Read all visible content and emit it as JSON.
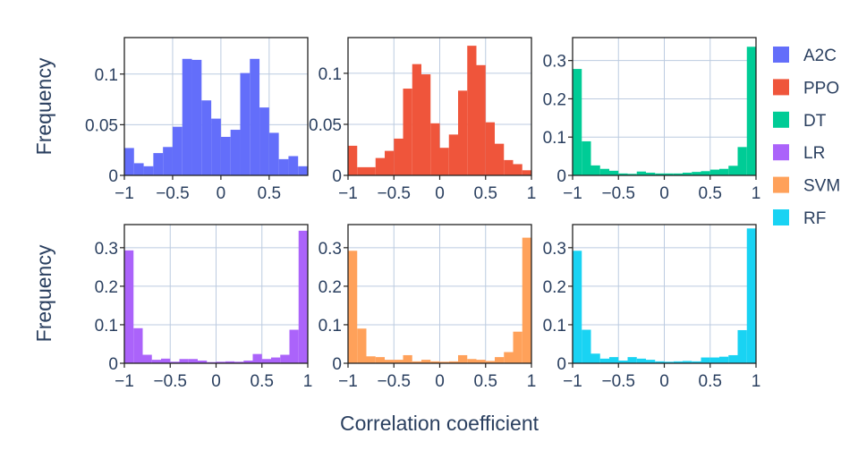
{
  "chart_data": {
    "type": "bar",
    "x_label": "Correlation coefficient",
    "y_label": "Frequency",
    "bin_width": 0.1,
    "bin_centers": [
      -0.95,
      -0.85,
      -0.75,
      -0.65,
      -0.55,
      -0.45,
      -0.35,
      -0.25,
      -0.15,
      -0.05,
      0.05,
      0.15,
      0.25,
      0.35,
      0.45,
      0.55,
      0.65,
      0.75,
      0.85,
      0.95
    ],
    "x_range": [
      -1,
      1
    ],
    "x_ticks": [
      -1,
      -0.5,
      0,
      0.5,
      1
    ],
    "x_tick_labels": [
      "−1",
      "−0.5",
      "0",
      "0.5",
      "1"
    ],
    "grid": true,
    "legend_placement": "right",
    "panels": [
      {
        "series": "A2C",
        "color": "#636efa",
        "row": 1,
        "col": 1,
        "x_range": [
          -1,
          0.9
        ],
        "x_ticks": [
          -1,
          -0.5,
          0,
          0.5
        ],
        "x_tick_labels": [
          "−1",
          "−0.5",
          "0",
          "0.5"
        ],
        "y_range": [
          0,
          0.136
        ],
        "y_ticks": [
          0,
          0.05,
          0.1
        ],
        "y_tick_labels": [
          "0",
          "0.05",
          "0.1"
        ],
        "values": [
          0.027,
          0.012,
          0.009,
          0.022,
          0.028,
          0.048,
          0.115,
          0.114,
          0.074,
          0.056,
          0.038,
          0.045,
          0.101,
          0.115,
          0.067,
          0.042,
          0.016,
          0.019,
          0.009
        ]
      },
      {
        "series": "PPO",
        "color": "#ef553b",
        "row": 1,
        "col": 2,
        "y_range": [
          0,
          0.135
        ],
        "y_ticks": [
          0,
          0.05,
          0.1
        ],
        "y_tick_labels": [
          "0",
          "0.05",
          "0.1"
        ],
        "values": [
          0.029,
          0.008,
          0.008,
          0.017,
          0.024,
          0.036,
          0.085,
          0.109,
          0.099,
          0.051,
          0.027,
          0.04,
          0.083,
          0.127,
          0.108,
          0.052,
          0.031,
          0.015,
          0.011,
          0.005
        ]
      },
      {
        "series": "DT",
        "color": "#00cc96",
        "row": 1,
        "col": 3,
        "y_range": [
          0,
          0.36
        ],
        "y_ticks": [
          0,
          0.1,
          0.2,
          0.3
        ],
        "y_tick_labels": [
          "0",
          "0.1",
          "0.2",
          "0.3"
        ],
        "values": [
          0.278,
          0.089,
          0.026,
          0.017,
          0.012,
          0.005,
          0.004,
          0.01,
          0.007,
          0.005,
          0.005,
          0.005,
          0.007,
          0.009,
          0.011,
          0.015,
          0.017,
          0.025,
          0.074,
          0.336
        ]
      },
      {
        "series": "LR",
        "color": "#ab63fa",
        "row": 2,
        "col": 1,
        "y_range": [
          0,
          0.36
        ],
        "y_ticks": [
          0,
          0.1,
          0.2,
          0.3
        ],
        "y_tick_labels": [
          "0",
          "0.1",
          "0.2",
          "0.3"
        ],
        "values": [
          0.293,
          0.091,
          0.022,
          0.009,
          0.012,
          0.004,
          0.011,
          0.011,
          0.007,
          0.003,
          0.004,
          0.005,
          0.004,
          0.007,
          0.024,
          0.011,
          0.015,
          0.022,
          0.087,
          0.344
        ]
      },
      {
        "series": "SVM",
        "color": "#ffa15a",
        "row": 2,
        "col": 2,
        "y_range": [
          0,
          0.36
        ],
        "y_ticks": [
          0,
          0.1,
          0.2,
          0.3
        ],
        "y_tick_labels": [
          "0",
          "0.1",
          "0.2",
          "0.3"
        ],
        "values": [
          0.292,
          0.09,
          0.018,
          0.016,
          0.009,
          0.009,
          0.021,
          0.005,
          0.009,
          0.005,
          0.004,
          0.005,
          0.021,
          0.011,
          0.009,
          0.006,
          0.016,
          0.029,
          0.082,
          0.326
        ]
      },
      {
        "series": "RF",
        "color": "#19d3f3",
        "row": 2,
        "col": 3,
        "y_range": [
          0,
          0.36
        ],
        "y_ticks": [
          0,
          0.1,
          0.2,
          0.3
        ],
        "y_tick_labels": [
          "0",
          "0.1",
          "0.2",
          "0.3"
        ],
        "values": [
          0.292,
          0.087,
          0.025,
          0.012,
          0.016,
          0.007,
          0.016,
          0.012,
          0.009,
          0.005,
          0.004,
          0.005,
          0.006,
          0.005,
          0.015,
          0.015,
          0.017,
          0.021,
          0.086,
          0.35
        ]
      }
    ],
    "legend": [
      {
        "name": "A2C",
        "color": "#636efa"
      },
      {
        "name": "PPO",
        "color": "#ef553b"
      },
      {
        "name": "DT",
        "color": "#00cc96"
      },
      {
        "name": "LR",
        "color": "#ab63fa"
      },
      {
        "name": "SVM",
        "color": "#ffa15a"
      },
      {
        "name": "RF",
        "color": "#19d3f3"
      }
    ]
  }
}
